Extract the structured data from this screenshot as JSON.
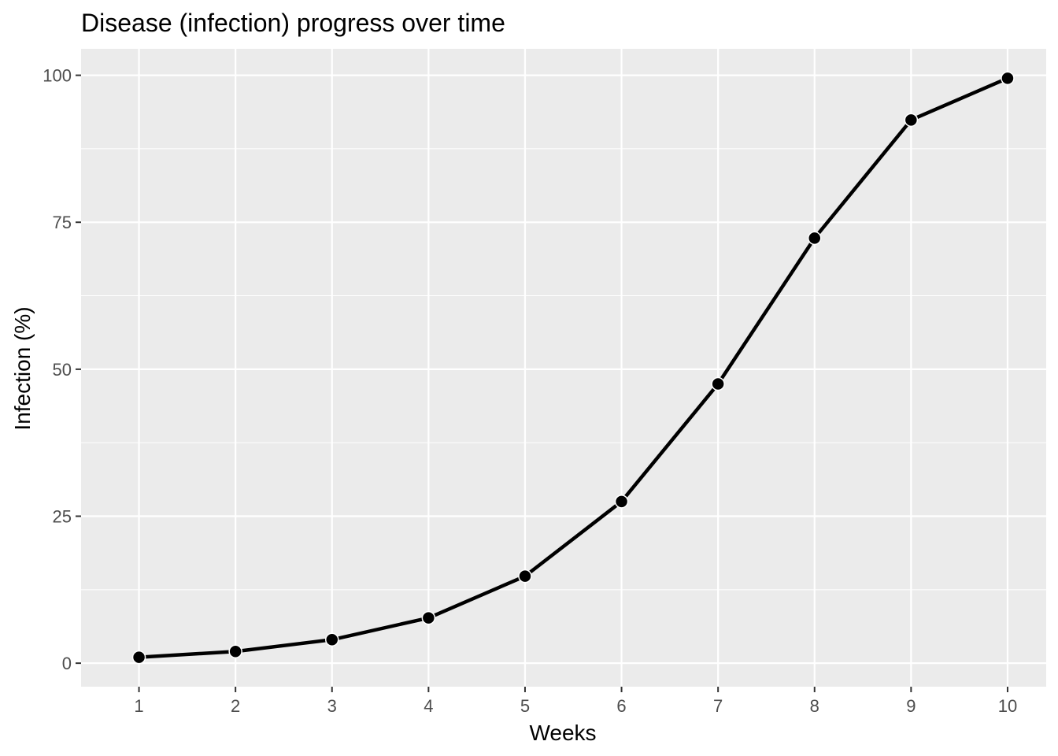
{
  "chart_data": {
    "type": "line",
    "title": "Disease (infection) progress over time",
    "xlabel": "Weeks",
    "ylabel": "Infection (%)",
    "x": [
      1,
      2,
      3,
      4,
      5,
      6,
      7,
      8,
      9,
      10
    ],
    "series": [
      {
        "values": [
          1.0,
          2.0,
          4.0,
          7.7,
          14.8,
          27.5,
          47.5,
          72.3,
          92.4,
          99.5
        ]
      }
    ],
    "x_ticks": [
      "1",
      "2",
      "3",
      "4",
      "5",
      "6",
      "7",
      "8",
      "9",
      "10"
    ],
    "y_ticks": [
      0,
      25,
      50,
      75,
      100
    ],
    "y_tick_labels": [
      "0",
      "25",
      "50",
      "75",
      "100"
    ],
    "xlim": [
      0.4,
      10.4
    ],
    "ylim": [
      -4,
      104.5
    ],
    "grid": true,
    "theme_colors": {
      "panel_background": "#ebebeb",
      "grid_line": "#ffffff",
      "line": "#000000",
      "point": "#000000",
      "tick_label": "#4d4d4d",
      "tick_mark": "#333333"
    }
  }
}
